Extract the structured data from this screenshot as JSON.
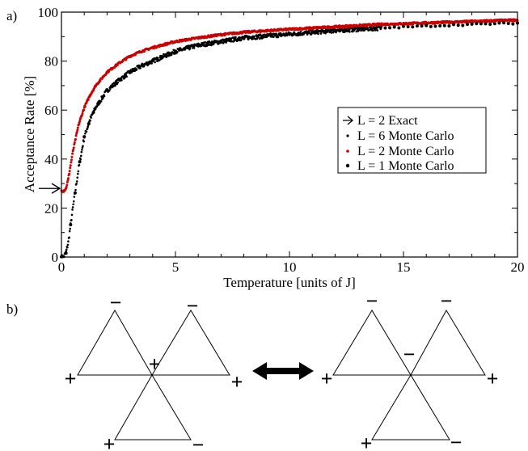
{
  "panel_labels": {
    "a": "a)",
    "b": "b)"
  },
  "chart_data": {
    "type": "scatter",
    "title": "",
    "xlabel": "Temperature [units of J]",
    "ylabel": "Acceptance Rate [%]",
    "xlim": [
      0,
      20
    ],
    "ylim": [
      0,
      100
    ],
    "xticks": [
      0,
      5,
      10,
      15,
      20
    ],
    "yticks": [
      0,
      20,
      40,
      60,
      80,
      100
    ],
    "xtick_labels": [
      "0",
      "5",
      "10",
      "15",
      "20"
    ],
    "ytick_labels": [
      "0",
      "20",
      "40",
      "60",
      "80",
      "100"
    ],
    "grid": false,
    "legend_position": "center-right",
    "series": [
      {
        "name": "L = 2 Exact",
        "marker": "arrow",
        "color": "#000000",
        "points": [
          {
            "x": 0,
            "y": 28
          }
        ]
      },
      {
        "name": "L = 6 Monte Carlo",
        "marker": "dot",
        "color": "#000000",
        "x": [
          0,
          0.1,
          0.2,
          0.3,
          0.5,
          0.75,
          1,
          1.25,
          1.5,
          2,
          2.5,
          3,
          3.5,
          4,
          5,
          6,
          7,
          8,
          10,
          12,
          14,
          16,
          18,
          20
        ],
        "y": [
          0,
          0,
          2,
          6,
          20,
          36,
          49,
          56,
          61,
          68,
          72,
          75.5,
          78,
          80,
          84,
          86.5,
          88,
          89.5,
          91,
          92.5,
          93.5,
          94.3,
          95,
          95.5
        ]
      },
      {
        "name": "L = 2 Monte Carlo",
        "marker": "dot",
        "color": "#cc0000",
        "x": [
          0,
          0.1,
          0.2,
          0.3,
          0.5,
          0.75,
          1,
          1.25,
          1.5,
          2,
          2.5,
          3,
          3.5,
          4,
          5,
          6,
          7,
          8,
          10,
          12,
          14,
          16,
          18,
          20
        ],
        "y": [
          27,
          27,
          28,
          32,
          43,
          54,
          61,
          66,
          70,
          75.5,
          79,
          82,
          84,
          85.5,
          88,
          89.5,
          90.8,
          91.8,
          93,
          94,
          95,
          95.6,
          96.2,
          96.8
        ]
      },
      {
        "name": "L = 1 Monte Carlo",
        "marker": "dot",
        "color": "#000000",
        "x": [
          0,
          0.1,
          0.2,
          0.3,
          0.5,
          0.75,
          1,
          1.25,
          1.5,
          2,
          2.5,
          3,
          3.5,
          4,
          5,
          6,
          7,
          8,
          10,
          12,
          14,
          16,
          18,
          20
        ],
        "y": [
          0,
          0,
          1.5,
          6,
          20,
          36,
          49,
          56,
          61,
          68,
          72,
          75.5,
          78,
          80,
          84,
          86.5,
          88,
          89.5,
          91,
          92.5,
          93.5,
          94.3,
          95,
          95.5
        ]
      }
    ]
  },
  "diagram": {
    "left_config": {
      "top_left_sign": "−",
      "top_right_sign": "−",
      "center_sign": "+",
      "left_sign": "+",
      "right_sign": "+",
      "bottom_left_sign": "+",
      "bottom_right_sign": "−"
    },
    "right_config": {
      "top_left_sign": "−",
      "top_right_sign": "−",
      "center_sign": "−",
      "left_sign": "+",
      "right_sign": "+",
      "bottom_left_sign": "+",
      "bottom_right_sign": "−"
    },
    "connector": "double-arrow"
  }
}
